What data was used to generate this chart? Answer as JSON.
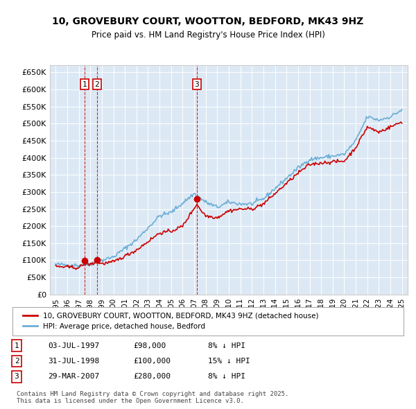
{
  "title": "10, GROVEBURY COURT, WOOTTON, BEDFORD, MK43 9HZ",
  "subtitle": "Price paid vs. HM Land Registry's House Price Index (HPI)",
  "bg_color": "#dce9f5",
  "plot_bg_color": "#dce9f5",
  "hpi_color": "#6baed6",
  "price_color": "#cc0000",
  "ylim": [
    0,
    670000
  ],
  "yticks": [
    0,
    50000,
    100000,
    150000,
    200000,
    250000,
    300000,
    350000,
    400000,
    450000,
    500000,
    550000,
    600000,
    650000
  ],
  "ytick_labels": [
    "£0",
    "£50K",
    "£100K",
    "£150K",
    "£200K",
    "£250K",
    "£300K",
    "£350K",
    "£400K",
    "£450K",
    "£500K",
    "£550K",
    "£600K",
    "£650K"
  ],
  "sales": [
    {
      "date_num": 1997.5,
      "price": 98000,
      "label": "1"
    },
    {
      "date_num": 1998.58,
      "price": 100000,
      "label": "2"
    },
    {
      "date_num": 2007.24,
      "price": 280000,
      "label": "3"
    }
  ],
  "sale_annotations": [
    {
      "num": "1",
      "date": "03-JUL-1997",
      "price": "£98,000",
      "pct": "8% ↓ HPI"
    },
    {
      "num": "2",
      "date": "31-JUL-1998",
      "price": "£100,000",
      "pct": "15% ↓ HPI"
    },
    {
      "num": "3",
      "date": "29-MAR-2007",
      "price": "£280,000",
      "pct": "8% ↓ HPI"
    }
  ],
  "legend_line1": "10, GROVEBURY COURT, WOOTTON, BEDFORD, MK43 9HZ (detached house)",
  "legend_line2": "HPI: Average price, detached house, Bedford",
  "footer": "Contains HM Land Registry data © Crown copyright and database right 2025.\nThis data is licensed under the Open Government Licence v3.0.",
  "xmin": 1994.5,
  "xmax": 2025.5
}
